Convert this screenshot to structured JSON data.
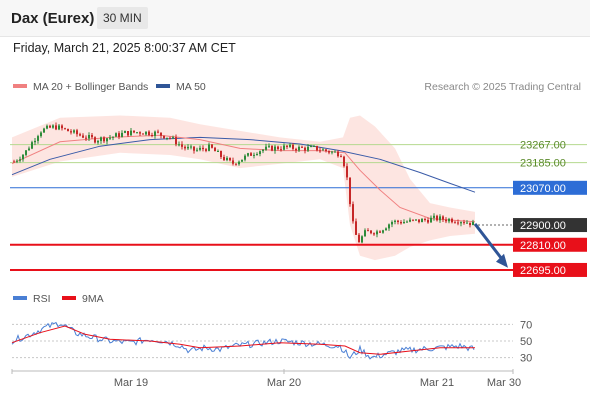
{
  "header": {
    "title": "Dax (Eurex)",
    "timeframe": "30 MIN"
  },
  "timestamp": "Friday, March 21, 2025 8:00:37 AM CET",
  "chart_data": [
    {
      "type": "candlestick",
      "legend_position": "top-left",
      "legend": [
        {
          "label": "MA 20 + Bollinger Bands",
          "color": "#f08080"
        },
        {
          "label": "MA 50",
          "color": "#2f5597"
        }
      ],
      "credit": "Research © 2025 Trading Central",
      "y_range": [
        22640,
        23480
      ],
      "x_ticks": [
        "Mar 19",
        "Mar 20",
        "Mar 21",
        "Mar 30"
      ],
      "levels": [
        {
          "label": "23267.00",
          "value": 23267,
          "kind": "resistance",
          "color": "#b5d98f"
        },
        {
          "label": "23185.00",
          "value": 23185,
          "kind": "resistance",
          "color": "#b5d98f"
        },
        {
          "label": "23070.00",
          "value": 23070,
          "kind": "pivot",
          "color": "#2d6dd6"
        },
        {
          "label": "22900.00",
          "value": 22900,
          "kind": "last",
          "color": "#333333"
        },
        {
          "label": "22810.00",
          "value": 22810,
          "kind": "support",
          "color": "#e8101a"
        },
        {
          "label": "22695.00",
          "value": 22695,
          "kind": "support",
          "color": "#e8101a"
        }
      ],
      "arrow": {
        "from": 22905,
        "to": 22705,
        "color": "#2f5597"
      }
    },
    {
      "type": "line",
      "legend_position": "top-left",
      "legend": [
        {
          "label": "RSI",
          "color": "#4a7fd4"
        },
        {
          "label": "9MA",
          "color": "#e8101a"
        }
      ],
      "y_range": [
        20,
        80
      ],
      "y_ticks": [
        "70",
        "50",
        "30"
      ],
      "levels": [
        70,
        50,
        30
      ]
    }
  ]
}
